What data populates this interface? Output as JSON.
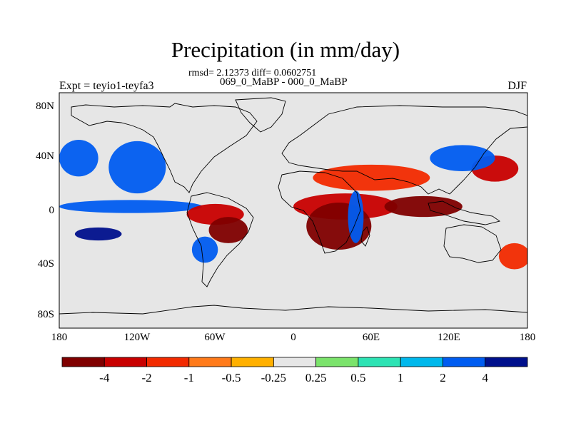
{
  "title": "Precipitation (in mm/day)",
  "subtitle_stats": "rmsd= 2.12373 diff= 0.0602751",
  "subtitle_periods": "069_0_MaBP - 000_0_MaBP",
  "experiment_label": "Expt = teyio1-teyfa3",
  "season_label": "DJF",
  "map": {
    "projection": "cylindrical-equidistant",
    "lon_range": [
      -180,
      180
    ],
    "lat_range": [
      -90,
      90
    ],
    "y_ticks": [
      {
        "lat": 80,
        "label": "80N"
      },
      {
        "lat": 40,
        "label": "40N"
      },
      {
        "lat": 0,
        "label": "0"
      },
      {
        "lat": -40,
        "label": "40S"
      },
      {
        "lat": -80,
        "label": "80S"
      }
    ],
    "x_ticks": [
      {
        "lon": -180,
        "label": "180"
      },
      {
        "lon": -120,
        "label": "120W"
      },
      {
        "lon": -60,
        "label": "60W"
      },
      {
        "lon": 0,
        "label": "0"
      },
      {
        "lon": 60,
        "label": "60E"
      },
      {
        "lon": 120,
        "label": "120E"
      },
      {
        "lon": 180,
        "label": "180"
      }
    ],
    "background_color": "#e6e6e6"
  },
  "colorbar": {
    "colors": [
      "#7f0000",
      "#c80000",
      "#f22a00",
      "#ff7a1a",
      "#ffb000",
      "#e6e6e6",
      "#7be36b",
      "#2de3b4",
      "#00b8ec",
      "#005cf0",
      "#00108c"
    ],
    "labels": [
      "-4",
      "-2",
      "-1",
      "-0.5",
      "-0.25",
      "0.25",
      "0.5",
      "1",
      "2",
      "4"
    ]
  },
  "anomaly_regions": [
    {
      "lon": 155,
      "lat": 32,
      "rx": 18,
      "ry": 10,
      "level": "-2"
    },
    {
      "lon": 60,
      "lat": 25,
      "rx": 45,
      "ry": 10,
      "level": "-1"
    },
    {
      "lon": 40,
      "lat": 3,
      "rx": 40,
      "ry": 10,
      "level": "-2"
    },
    {
      "lon": 100,
      "lat": 3,
      "rx": 30,
      "ry": 8,
      "level": "-4"
    },
    {
      "lon": -120,
      "lat": 33,
      "rx": 22,
      "ry": 20,
      "level": "2"
    },
    {
      "lon": -165,
      "lat": 40,
      "rx": 15,
      "ry": 14,
      "level": "2"
    },
    {
      "lon": -125,
      "lat": 3,
      "rx": 55,
      "ry": 5,
      "level": "2"
    },
    {
      "lon": -150,
      "lat": -18,
      "rx": 18,
      "ry": 5,
      "level": "4"
    },
    {
      "lon": -60,
      "lat": -3,
      "rx": 22,
      "ry": 8,
      "level": "-2"
    },
    {
      "lon": -50,
      "lat": -15,
      "rx": 15,
      "ry": 10,
      "level": "-4"
    },
    {
      "lon": -68,
      "lat": -30,
      "rx": 10,
      "ry": 10,
      "level": "2"
    },
    {
      "lon": 35,
      "lat": -12,
      "rx": 25,
      "ry": 18,
      "level": "-4"
    },
    {
      "lon": 48,
      "lat": -5,
      "rx": 6,
      "ry": 20,
      "level": "2"
    },
    {
      "lon": 130,
      "lat": 40,
      "rx": 25,
      "ry": 10,
      "level": "2"
    },
    {
      "lon": 170,
      "lat": -35,
      "rx": 12,
      "ry": 10,
      "level": "-1"
    }
  ]
}
